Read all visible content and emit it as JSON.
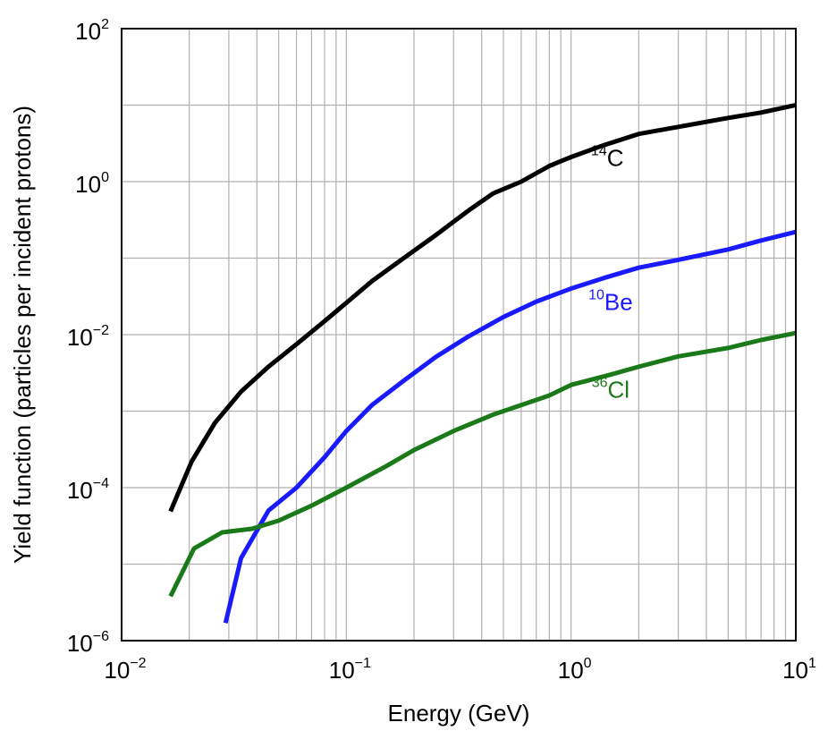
{
  "chart_data": {
    "type": "line",
    "xscale": "log",
    "yscale": "log",
    "xlabel": "Energy (GeV)",
    "ylabel": "Yield function (particles per incident protons)",
    "xlim": [
      0.01,
      10
    ],
    "ylim": [
      1e-06,
      100
    ],
    "grid": true,
    "x_ticks": [
      {
        "base": "10",
        "exp": "−2",
        "value": 0.01
      },
      {
        "base": "10",
        "exp": "−1",
        "value": 0.1
      },
      {
        "base": "10",
        "exp": "0",
        "value": 1
      },
      {
        "base": "10",
        "exp": "1",
        "value": 10
      }
    ],
    "y_ticks": [
      {
        "base": "10",
        "exp": "−6",
        "value": 1e-06
      },
      {
        "base": "10",
        "exp": "−4",
        "value": 0.0001
      },
      {
        "base": "10",
        "exp": "−2",
        "value": 0.01
      },
      {
        "base": "10",
        "exp": "0",
        "value": 1
      },
      {
        "base": "10",
        "exp": "2",
        "value": 100
      }
    ],
    "series": [
      {
        "name": "14C",
        "label_sup": "14",
        "label_main": "C",
        "color": "#000000",
        "label_at": [
          1.45,
          1.6
        ],
        "points": [
          [
            0.0165,
            4.9e-05
          ],
          [
            0.0205,
            0.00022
          ],
          [
            0.026,
            0.0007
          ],
          [
            0.034,
            0.0018
          ],
          [
            0.045,
            0.0038
          ],
          [
            0.06,
            0.0075
          ],
          [
            0.08,
            0.015
          ],
          [
            0.1,
            0.026
          ],
          [
            0.13,
            0.05
          ],
          [
            0.18,
            0.1
          ],
          [
            0.25,
            0.2
          ],
          [
            0.35,
            0.42
          ],
          [
            0.45,
            0.7
          ],
          [
            0.6,
            1.0
          ],
          [
            0.8,
            1.6
          ],
          [
            1.0,
            2.1
          ],
          [
            1.4,
            3.0
          ],
          [
            2.0,
            4.2
          ],
          [
            3.0,
            5.2
          ],
          [
            5.0,
            6.8
          ],
          [
            7.0,
            8.0
          ],
          [
            10.0,
            10.0
          ]
        ]
      },
      {
        "name": "10Be",
        "label_sup": "10",
        "label_main": "Be",
        "color": "#1a1aff",
        "label_at": [
          1.5,
          0.021
        ],
        "points": [
          [
            0.029,
            1.7e-06
          ],
          [
            0.034,
            1.2e-05
          ],
          [
            0.045,
            5e-05
          ],
          [
            0.06,
            0.0001
          ],
          [
            0.08,
            0.00025
          ],
          [
            0.1,
            0.00055
          ],
          [
            0.13,
            0.0012
          ],
          [
            0.18,
            0.0025
          ],
          [
            0.25,
            0.0051
          ],
          [
            0.35,
            0.0095
          ],
          [
            0.5,
            0.017
          ],
          [
            0.7,
            0.027
          ],
          [
            1.0,
            0.04
          ],
          [
            1.4,
            0.055
          ],
          [
            2.0,
            0.075
          ],
          [
            3.0,
            0.095
          ],
          [
            5.0,
            0.13
          ],
          [
            7.0,
            0.17
          ],
          [
            10.0,
            0.22
          ]
        ]
      },
      {
        "name": "36Cl",
        "label_sup": "36",
        "label_main": "Cl",
        "color": "#1a7a1a",
        "label_at": [
          1.5,
          0.0015
        ],
        "points": [
          [
            0.0165,
            3.8e-06
          ],
          [
            0.021,
            1.6e-05
          ],
          [
            0.028,
            2.6e-05
          ],
          [
            0.038,
            2.9e-05
          ],
          [
            0.05,
            3.7e-05
          ],
          [
            0.07,
            5.8e-05
          ],
          [
            0.1,
            0.0001
          ],
          [
            0.15,
            0.00019
          ],
          [
            0.2,
            0.00031
          ],
          [
            0.3,
            0.00055
          ],
          [
            0.45,
            0.0009
          ],
          [
            0.6,
            0.0012
          ],
          [
            0.8,
            0.0016
          ],
          [
            1.0,
            0.0022
          ],
          [
            1.5,
            0.003
          ],
          [
            2.0,
            0.0038
          ],
          [
            3.0,
            0.0052
          ],
          [
            5.0,
            0.0067
          ],
          [
            7.0,
            0.0085
          ],
          [
            10.0,
            0.0105
          ]
        ]
      }
    ]
  }
}
